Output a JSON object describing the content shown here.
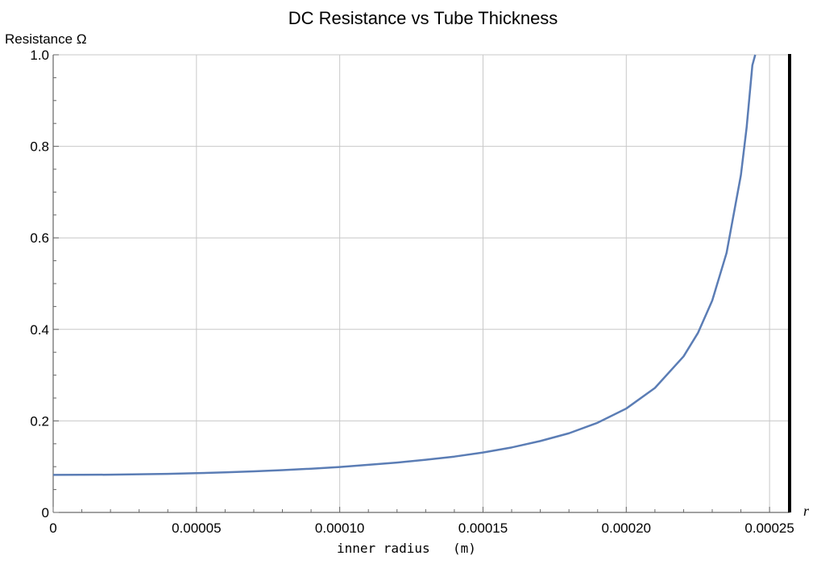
{
  "chart_data": {
    "type": "line",
    "title": "DC Resistance vs Tube Thickness",
    "ylabel": "Resistance Ω",
    "xlabel_main": "inner radius",
    "xlabel_unit": "(m)",
    "x_variable": "r",
    "xlim": [
      0,
      0.000257
    ],
    "ylim": [
      0,
      1.0
    ],
    "x_ticks": [
      {
        "value": 0,
        "label": "0"
      },
      {
        "value": 5e-05,
        "label": "0.00005"
      },
      {
        "value": 0.0001,
        "label": "0.00010"
      },
      {
        "value": 0.00015,
        "label": "0.00015"
      },
      {
        "value": 0.0002,
        "label": "0.00020"
      },
      {
        "value": 0.00025,
        "label": "0.00025"
      }
    ],
    "y_ticks": [
      {
        "value": 0,
        "label": "0"
      },
      {
        "value": 0.2,
        "label": "0.2"
      },
      {
        "value": 0.4,
        "label": "0.4"
      },
      {
        "value": 0.6,
        "label": "0.6"
      },
      {
        "value": 0.8,
        "label": "0.8"
      },
      {
        "value": 1.0,
        "label": "1.0"
      }
    ],
    "grid": true,
    "asymptote_x": 0.000257,
    "series": [
      {
        "color": "#5b7db5",
        "x": [
          0,
          1e-05,
          2e-05,
          3e-05,
          4e-05,
          5e-05,
          6e-05,
          7e-05,
          8e-05,
          9e-05,
          0.0001,
          0.00011,
          0.00012,
          0.00013,
          0.00014,
          0.00015,
          0.00016,
          0.00017,
          0.00018,
          0.00019,
          0.0002,
          0.00021,
          0.00022,
          0.000225,
          0.00023,
          0.000235,
          0.00024,
          0.000242,
          0.000244,
          0.000245
        ],
        "y": [
          0.082,
          0.0822,
          0.0825,
          0.0834,
          0.0843,
          0.0858,
          0.0875,
          0.0897,
          0.0925,
          0.0956,
          0.0993,
          0.104,
          0.109,
          0.115,
          0.122,
          0.131,
          0.142,
          0.156,
          0.173,
          0.196,
          0.227,
          0.272,
          0.341,
          0.392,
          0.463,
          0.567,
          0.737,
          0.841,
          0.977,
          1.0
        ]
      }
    ]
  }
}
